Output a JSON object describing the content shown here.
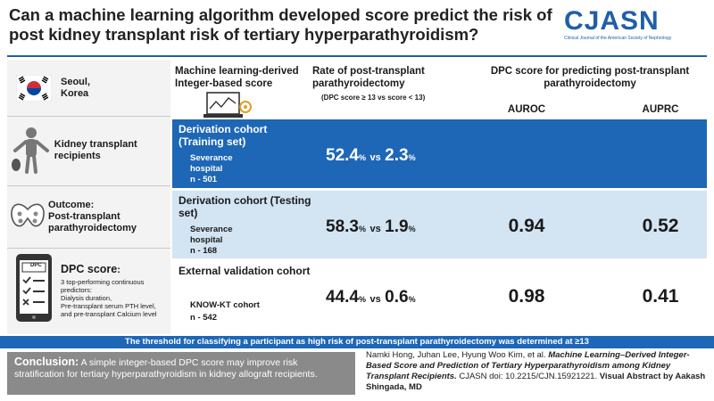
{
  "title": "Can a machine learning algorithm developed score predict the risk of post kidney transplant risk of tertiary hyperparathyroidism?",
  "logo": {
    "name": "CJASN",
    "subtitle": "Clinical Journal of the American Society of Nephrology"
  },
  "left_panel": {
    "location": "Seoul,\nKorea",
    "population": "Kidney transplant recipients",
    "outcome_label": "Outcome:",
    "outcome": "Post-transplant parathyroidectomy",
    "dpc_label": "DPC score",
    "dpc_colon": ":",
    "dpc_icon_text": "DPC",
    "dpc_desc_1": "3 top-performing continuous predictors:",
    "dpc_desc_2": "Dialysis duration,",
    "dpc_desc_3": "Pre-transplant serum PTH level,",
    "dpc_desc_4": "and pre-transplant Calcium level"
  },
  "headers": {
    "ml_score": "Machine learning-derived Integer-based score",
    "rate": "Rate of post-transplant parathyroidectomy",
    "rate_note": "(DPC score ≥ 13 vs score < 13)",
    "dpc_predict": "DPC score for predicting post-transplant parathyroidectomy",
    "auroc": "AUROC",
    "auprc": "AUPRC"
  },
  "cohorts": [
    {
      "title": "Derivation cohort (Training set)",
      "site": "Severance hospital",
      "n": "n - 501",
      "rate_high": "52.4",
      "rate_low": "2.3",
      "auroc": "",
      "auprc": ""
    },
    {
      "title": "Derivation cohort (Testing set)",
      "site": "Severance hospital",
      "n": "n - 168",
      "rate_high": "58.3",
      "rate_low": "1.9",
      "auroc": "0.94",
      "auprc": "0.52"
    },
    {
      "title": "External validation cohort",
      "site": "KNOW-KT cohort",
      "n": "n - 542",
      "rate_high": "44.4",
      "rate_low": "0.6",
      "auroc": "0.98",
      "auprc": "0.41"
    }
  ],
  "units": {
    "pct": "%",
    "vs": "vs"
  },
  "threshold": "The threshold for classifying a participant as high risk of post-transplant parathyroidectomy was determined at ≥13",
  "conclusion": {
    "label": "Conclusion:",
    "text": "A simple integer-based DPC score may improve risk stratification for tertiary hyperparathyroidism in kidney allograft recipients."
  },
  "citation": {
    "authors": "Namki Hong, Juhan Lee, Hyung Woo Kim, et al.",
    "article": "Machine Learning–Derived Integer-Based Score and Prediction of Tertiary Hyperparathyroidism among Kidney Transplant Recipients.",
    "doi": "CJASN doi: 10.2215/CJN.15921221.",
    "visual": "Visual Abstract by Aakash Shingada, MD"
  },
  "colors": {
    "blue": "#1e67b6",
    "light_blue": "#d3e4f2",
    "gray": "#8a8a8a",
    "flag_red": "#cd2e3a",
    "flag_blue": "#0047a0"
  }
}
